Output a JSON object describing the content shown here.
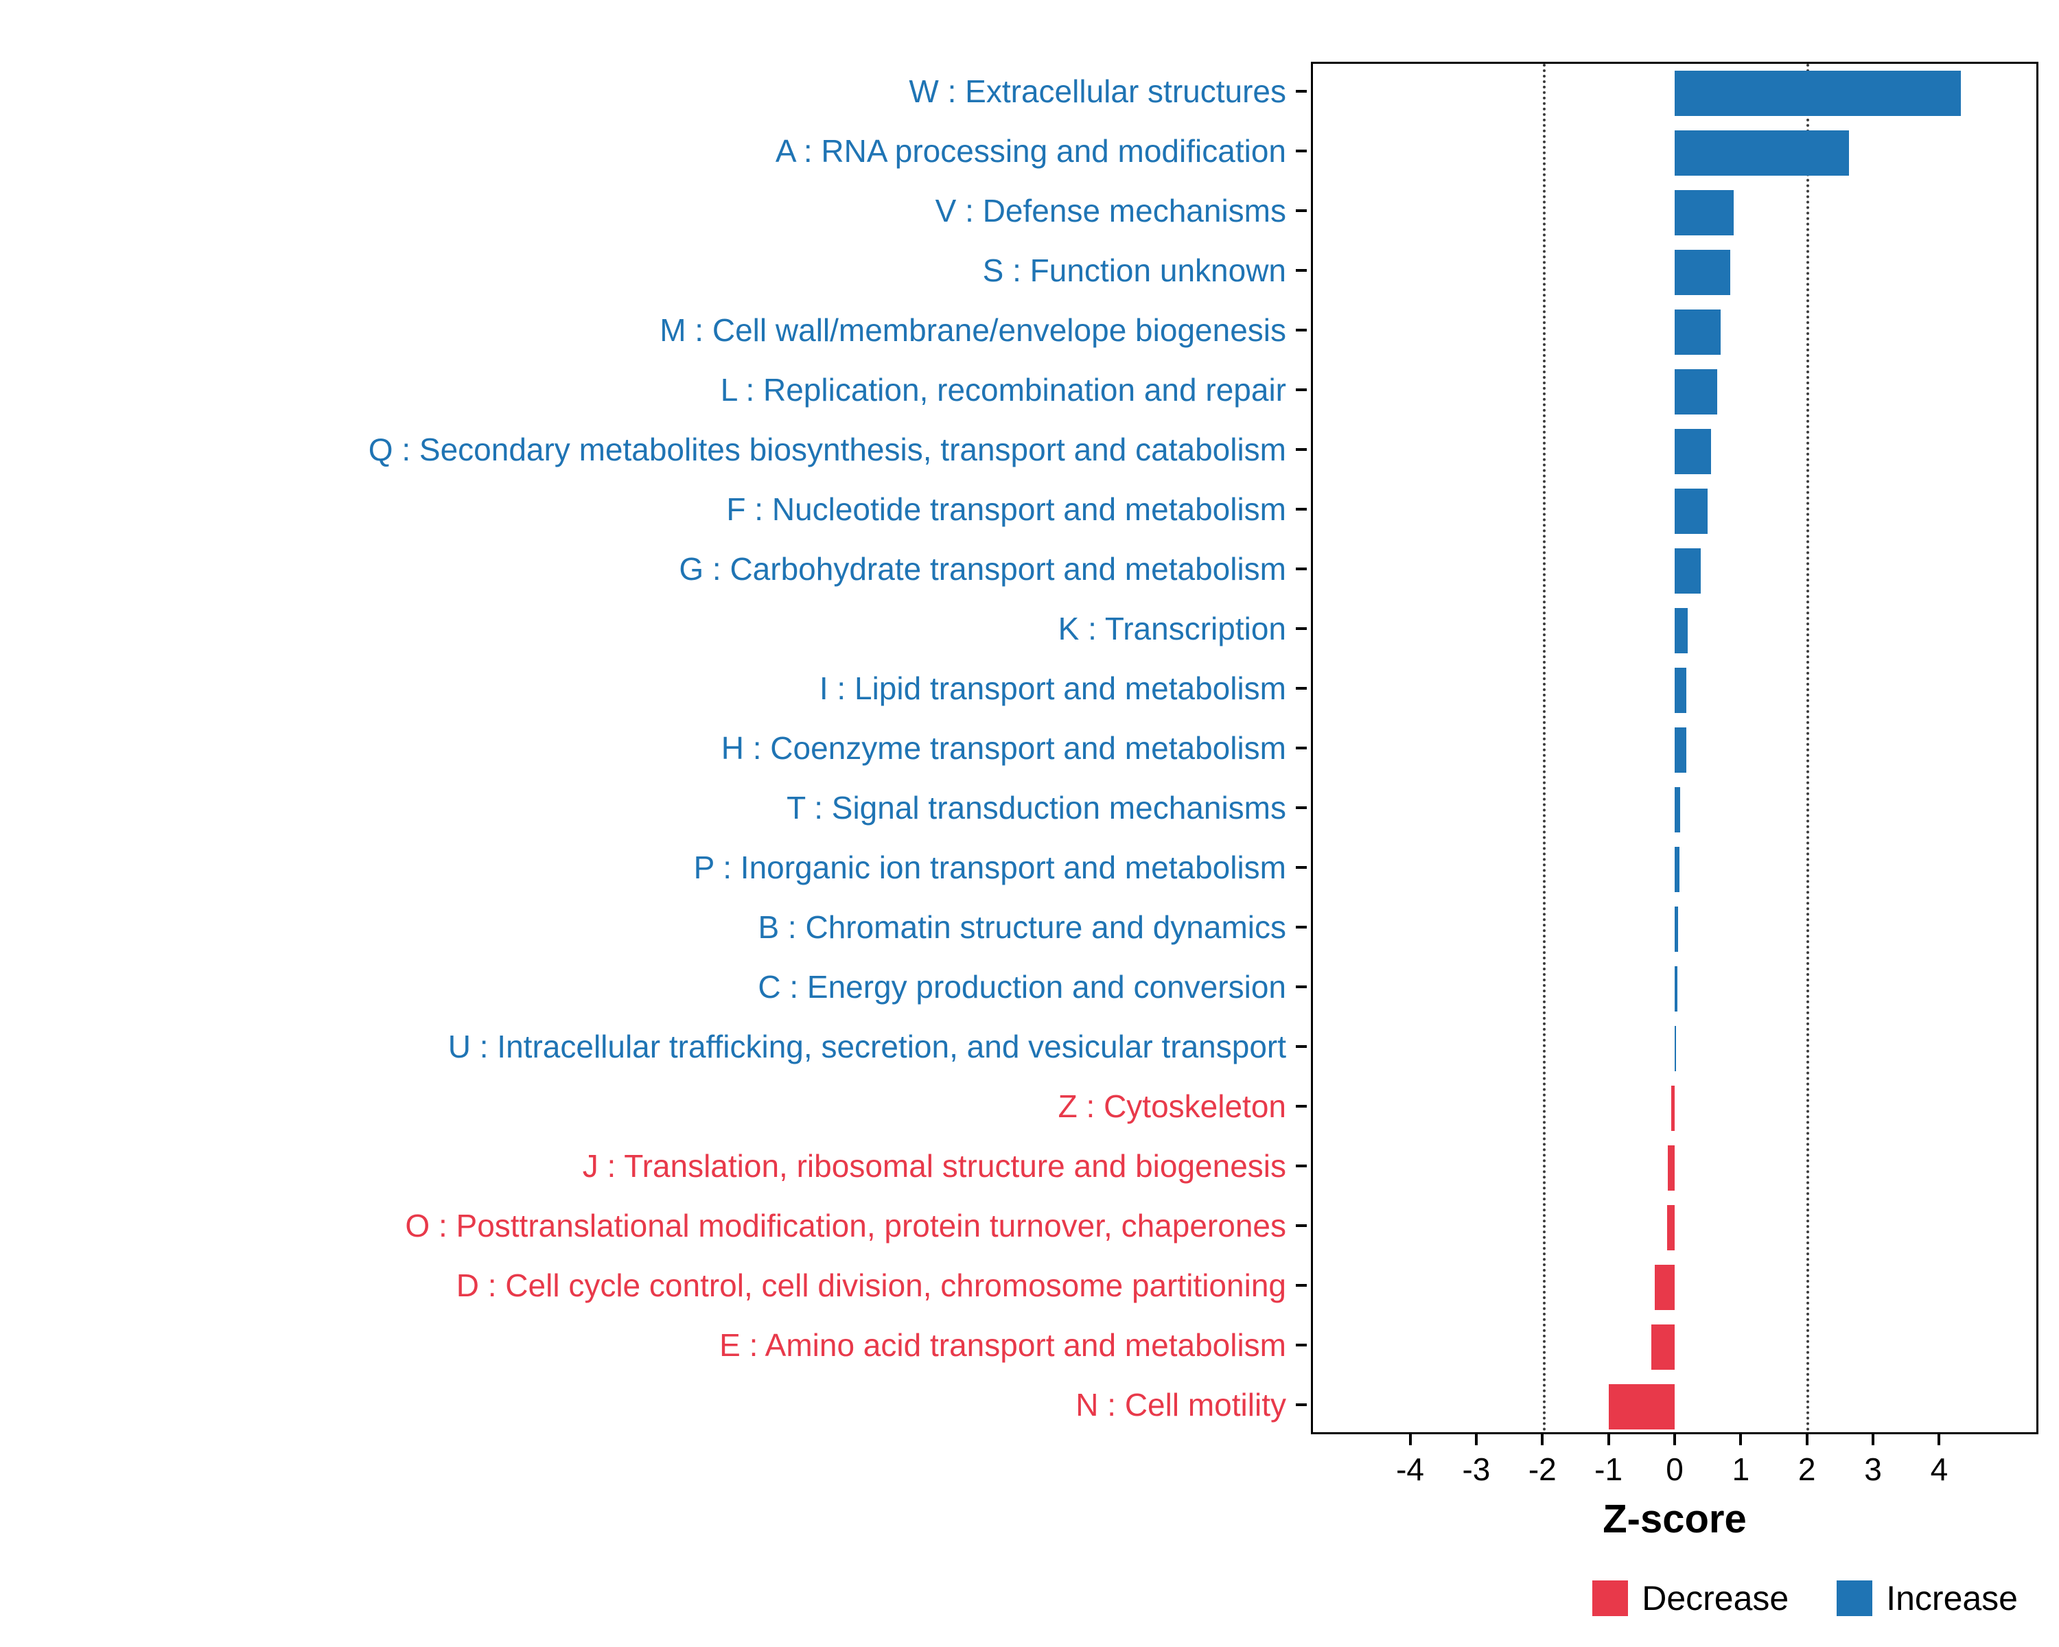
{
  "chart_data": {
    "type": "bar",
    "orientation": "horizontal",
    "title": "",
    "xlabel": "Z-score",
    "ylabel": "",
    "xlim": [
      -5.5,
      5.5
    ],
    "x_ticks": [
      -4,
      -3,
      -2,
      -1,
      0,
      1,
      2,
      3,
      4
    ],
    "reference_lines": [
      -2,
      2
    ],
    "grid": false,
    "colors": {
      "increase": "#1F74B4",
      "decrease": "#E8394A"
    },
    "legend": {
      "position": "bottom-right",
      "items": [
        {
          "label": "Decrease",
          "key": "decrease"
        },
        {
          "label": "Increase",
          "key": "increase"
        }
      ]
    },
    "categories": [
      {
        "label": "W : Extracellular structures",
        "value": 4.35,
        "direction": "increase"
      },
      {
        "label": "A : RNA processing and modification",
        "value": 2.65,
        "direction": "increase"
      },
      {
        "label": "V : Defense mechanisms",
        "value": 0.9,
        "direction": "increase"
      },
      {
        "label": "S : Function unknown",
        "value": 0.85,
        "direction": "increase"
      },
      {
        "label": "M : Cell wall/membrane/envelope biogenesis",
        "value": 0.7,
        "direction": "increase"
      },
      {
        "label": "L : Replication, recombination and repair",
        "value": 0.65,
        "direction": "increase"
      },
      {
        "label": "Q : Secondary metabolites biosynthesis, transport and catabolism",
        "value": 0.55,
        "direction": "increase"
      },
      {
        "label": "F : Nucleotide transport and metabolism",
        "value": 0.5,
        "direction": "increase"
      },
      {
        "label": "G : Carbohydrate transport and metabolism",
        "value": 0.4,
        "direction": "increase"
      },
      {
        "label": "K : Transcription",
        "value": 0.2,
        "direction": "increase"
      },
      {
        "label": "I : Lipid transport and metabolism",
        "value": 0.18,
        "direction": "increase"
      },
      {
        "label": "H : Coenzyme transport and metabolism",
        "value": 0.18,
        "direction": "increase"
      },
      {
        "label": "T : Signal transduction mechanisms",
        "value": 0.08,
        "direction": "increase"
      },
      {
        "label": "P : Inorganic ion transport and metabolism",
        "value": 0.07,
        "direction": "increase"
      },
      {
        "label": "B : Chromatin structure and dynamics",
        "value": 0.05,
        "direction": "increase"
      },
      {
        "label": "C : Energy production and conversion",
        "value": 0.04,
        "direction": "increase"
      },
      {
        "label": "U : Intracellular trafficking, secretion, and vesicular transport",
        "value": 0.02,
        "direction": "increase"
      },
      {
        "label": "Z : Cytoskeleton",
        "value": -0.05,
        "direction": "decrease"
      },
      {
        "label": "J : Translation, ribosomal structure and biogenesis",
        "value": -0.1,
        "direction": "decrease"
      },
      {
        "label": "O : Posttranslational modification, protein turnover, chaperones",
        "value": -0.12,
        "direction": "decrease"
      },
      {
        "label": "D : Cell cycle control, cell division, chromosome partitioning",
        "value": -0.3,
        "direction": "decrease"
      },
      {
        "label": "E : Amino acid transport and metabolism",
        "value": -0.35,
        "direction": "decrease"
      },
      {
        "label": "N : Cell motility",
        "value": -1.0,
        "direction": "decrease"
      }
    ]
  }
}
